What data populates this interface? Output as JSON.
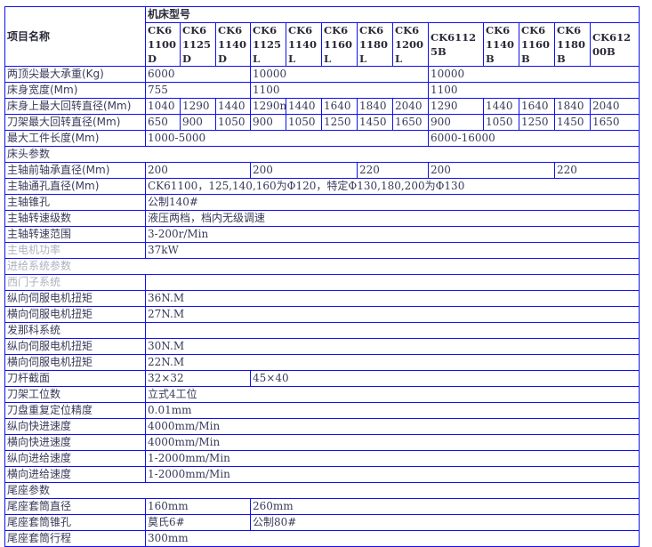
{
  "header": {
    "item_name": "项目名称",
    "model_group": "机床型号",
    "models": [
      "CK61100D",
      "CK61125D",
      "CK61140D",
      "CK61125L",
      "CK61140L",
      "CK61160L",
      "CK61180L",
      "CK61200L",
      "CK61125B",
      "CK61140B",
      "CK61160B",
      "CK61180B",
      "CK61200B"
    ]
  },
  "colors": {
    "border": "#1010f0",
    "text": "#3a3a5a"
  },
  "rows": [
    {
      "label": "两顶尖最大承重(Kg)",
      "cells": [
        {
          "t": "6000",
          "s": 3
        },
        {
          "t": "10000",
          "s": 5
        },
        {
          "t": "10000",
          "s": 5
        }
      ]
    },
    {
      "label": "床身宽度(Mm)",
      "cells": [
        {
          "t": "755",
          "s": 3
        },
        {
          "t": "1100",
          "s": 5
        },
        {
          "t": "1100",
          "s": 5
        }
      ]
    },
    {
      "label": "床身上最大回转直径(Mm)",
      "cells": [
        {
          "t": "1040"
        },
        {
          "t": "1290"
        },
        {
          "t": "1440"
        },
        {
          "t": "1290m"
        },
        {
          "t": "1440"
        },
        {
          "t": "1640"
        },
        {
          "t": "1840"
        },
        {
          "t": "2040"
        },
        {
          "t": "1290"
        },
        {
          "t": "1440"
        },
        {
          "t": "1640"
        },
        {
          "t": "1840"
        },
        {
          "t": "2040"
        }
      ]
    },
    {
      "label": "刀架最大回转直径(Mm)",
      "cells": [
        {
          "t": "650"
        },
        {
          "t": "900"
        },
        {
          "t": "1050"
        },
        {
          "t": "900"
        },
        {
          "t": "1050"
        },
        {
          "t": "1250"
        },
        {
          "t": "1450"
        },
        {
          "t": "1650"
        },
        {
          "t": "900"
        },
        {
          "t": "1050"
        },
        {
          "t": "1250"
        },
        {
          "t": "1450"
        },
        {
          "t": "1650"
        }
      ]
    },
    {
      "label": "最大工件长度(Mm)",
      "cells": [
        {
          "t": "1000-5000",
          "s": 8
        },
        {
          "t": "6000-16000",
          "s": 5
        }
      ]
    },
    {
      "section": "床头参数"
    },
    {
      "label": "主轴前轴承直径(Mm)",
      "cells": [
        {
          "t": "200",
          "s": 3
        },
        {
          "t": "200",
          "s": 3
        },
        {
          "t": "220",
          "s": 2
        },
        {
          "t": "200",
          "s": 3
        },
        {
          "t": "220",
          "s": 2
        }
      ]
    },
    {
      "label": "主轴通孔直径(Mm)",
      "cells": [
        {
          "t": "CK61100，125,140,160为Φ120，特定Φ130,180,200为Φ130",
          "s": 13
        }
      ]
    },
    {
      "label": "主轴锥孔",
      "cells": [
        {
          "t": "公制140#",
          "s": 13
        }
      ]
    },
    {
      "label": "主轴转速级数",
      "cells": [
        {
          "t": "液压两档，档内无级调速",
          "s": 13
        }
      ]
    },
    {
      "label": "主轴转速范围",
      "cells": [
        {
          "t": "3-200r/Min",
          "s": 13
        }
      ]
    },
    {
      "label": "主电机功率",
      "faded": true,
      "cells": [
        {
          "t": "37kW",
          "s": 13
        }
      ]
    },
    {
      "section": "进给系统参数",
      "faded": true
    },
    {
      "label": "西门子系统",
      "faded": true,
      "cells": [
        {
          "t": "",
          "s": 13
        }
      ]
    },
    {
      "label": "纵向伺服电机扭矩",
      "cells": [
        {
          "t": "36N.M",
          "s": 13
        }
      ]
    },
    {
      "label": "横向伺服电机扭矩",
      "cells": [
        {
          "t": "27N.M",
          "s": 13
        }
      ]
    },
    {
      "label": "发那科系统",
      "cells": [
        {
          "t": "",
          "s": 13
        }
      ]
    },
    {
      "label": "纵向伺服电机扭矩",
      "cells": [
        {
          "t": "30N.M",
          "s": 13
        }
      ]
    },
    {
      "label": "横向伺服电机扭矩",
      "cells": [
        {
          "t": "22N.M",
          "s": 13
        }
      ]
    },
    {
      "label": "刀杆截面",
      "cells": [
        {
          "t": "32×32",
          "s": 3
        },
        {
          "t": "45×40",
          "s": 10
        }
      ]
    },
    {
      "label": "刀架工位数",
      "cells": [
        {
          "t": "立式4工位",
          "s": 13
        }
      ]
    },
    {
      "label": "刀盘重复定位精度",
      "cells": [
        {
          "t": "0.01mm",
          "s": 13
        }
      ]
    },
    {
      "label": "纵向快进速度",
      "cells": [
        {
          "t": "4000mm/Min",
          "s": 13
        }
      ]
    },
    {
      "label": "横向快进速度",
      "cells": [
        {
          "t": "4000mm/Min",
          "s": 13
        }
      ]
    },
    {
      "label": "纵向进给速度",
      "cells": [
        {
          "t": "1-2000mm/Min",
          "s": 13
        }
      ]
    },
    {
      "label": "横向进给速度",
      "cells": [
        {
          "t": "1-2000mm/Min",
          "s": 13
        }
      ]
    },
    {
      "section": "尾座参数"
    },
    {
      "label": "尾座套筒直径",
      "cells": [
        {
          "t": "160mm",
          "s": 3
        },
        {
          "t": "260mm",
          "s": 10
        }
      ]
    },
    {
      "label": "尾座套筒锥孔",
      "cells": [
        {
          "t": "莫氏6#",
          "s": 3
        },
        {
          "t": "公制80#",
          "s": 10
        }
      ]
    },
    {
      "label": "尾座套筒行程",
      "cells": [
        {
          "t": "300mm",
          "s": 13
        }
      ]
    }
  ]
}
